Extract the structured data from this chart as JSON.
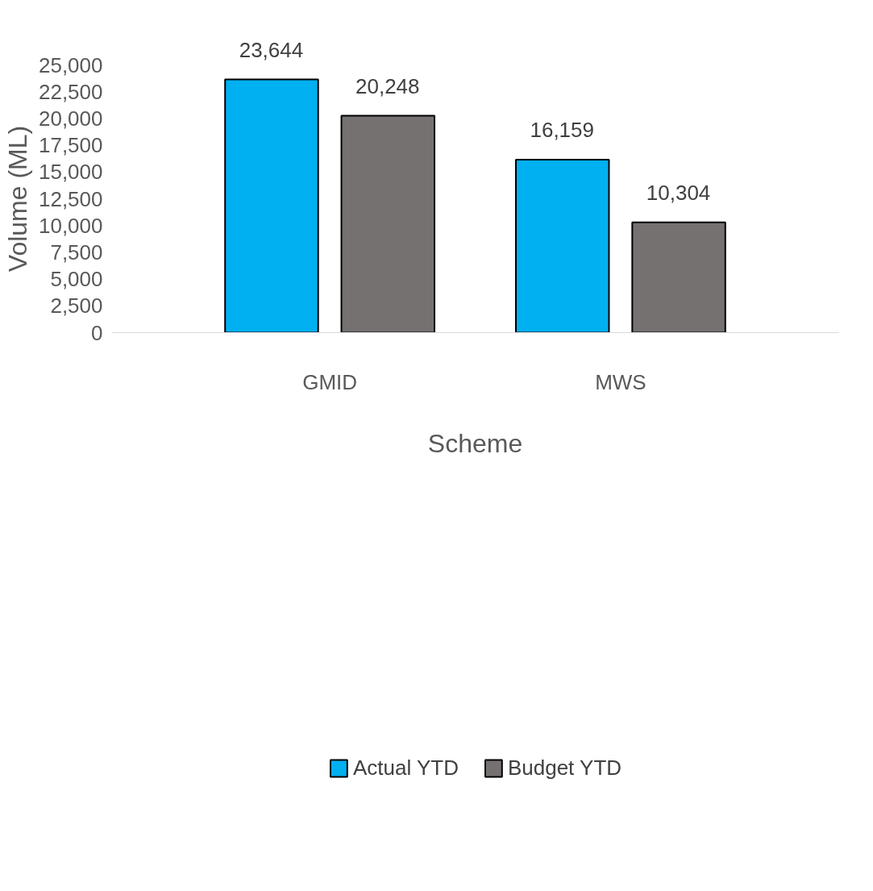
{
  "chart_data": {
    "type": "bar",
    "xlabel": "Scheme",
    "ylabel": "Volume (ML)",
    "categories": [
      "GMID",
      "MWS"
    ],
    "series": [
      {
        "name": "Actual YTD",
        "color": "#00b0f0",
        "values": [
          23644,
          16159
        ],
        "value_labels": [
          "23,644",
          "16,159"
        ]
      },
      {
        "name": "Budget YTD",
        "color": "#767171",
        "values": [
          20248,
          10304
        ],
        "value_labels": [
          "20,248",
          "10,304"
        ]
      }
    ],
    "ylim": [
      0,
      25000
    ],
    "yticks": [
      0,
      {
        "value": 2500,
        "label": "2,500"
      },
      {
        "value": 5000,
        "label": "5,000"
      },
      {
        "value": 7500,
        "label": "7,500"
      },
      {
        "value": 10000,
        "label": "10,000"
      },
      {
        "value": 12500,
        "label": "12,500"
      },
      {
        "value": 15000,
        "label": "15,000"
      },
      {
        "value": 17500,
        "label": "17,500"
      },
      {
        "value": 20000,
        "label": "20,000"
      },
      {
        "value": 22500,
        "label": "22,500"
      },
      {
        "value": 25000,
        "label": "25,000"
      }
    ],
    "grid": false,
    "legend": "bottom"
  }
}
